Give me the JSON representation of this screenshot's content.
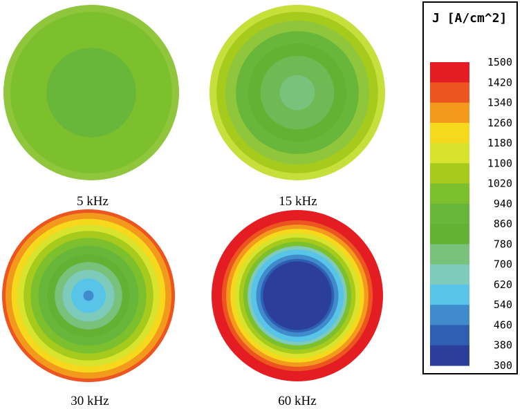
{
  "chart_data": {
    "type": "heatmap",
    "title": "",
    "colorbar": {
      "label": "J [A/cm^2]",
      "ticks": [
        1500,
        1420,
        1340,
        1260,
        1180,
        1100,
        1020,
        940,
        860,
        780,
        700,
        620,
        540,
        460,
        380,
        300
      ],
      "band_colors": [
        "#e41d23",
        "#ec5420",
        "#f39a1d",
        "#f6d81d",
        "#d7e32c",
        "#a6cb1d",
        "#7cc02e",
        "#69b73a",
        "#63b233",
        "#78c27b",
        "#7ecbbb",
        "#57c4e8",
        "#3f8bcc",
        "#2e5fb2",
        "#2b3e99"
      ]
    },
    "plots": [
      {
        "label": "5 kHz",
        "frequency_khz": 5,
        "rings_outer_to_inner": [
          {
            "r": 1.0,
            "color": "#8fc63c"
          },
          {
            "r": 0.92,
            "color": "#7cc02e"
          },
          {
            "r": 0.51,
            "color": "#69b73a"
          }
        ]
      },
      {
        "label": "15 kHz",
        "frequency_khz": 15,
        "rings_outer_to_inner": [
          {
            "r": 1.0,
            "color": "#c7df3a"
          },
          {
            "r": 0.92,
            "color": "#a6cb1d"
          },
          {
            "r": 0.82,
            "color": "#8fc63c"
          },
          {
            "r": 0.7,
            "color": "#69b73a"
          },
          {
            "r": 0.56,
            "color": "#63b233"
          },
          {
            "r": 0.42,
            "color": "#6fba55"
          },
          {
            "r": 0.2,
            "color": "#78c27b"
          }
        ]
      },
      {
        "label": "30 kHz",
        "frequency_khz": 30,
        "rings_outer_to_inner": [
          {
            "r": 1.0,
            "color": "#ec5420"
          },
          {
            "r": 0.96,
            "color": "#f39a1d"
          },
          {
            "r": 0.89,
            "color": "#f6d81d"
          },
          {
            "r": 0.82,
            "color": "#d7e32c"
          },
          {
            "r": 0.75,
            "color": "#a6cb1d"
          },
          {
            "r": 0.67,
            "color": "#7cc02e"
          },
          {
            "r": 0.58,
            "color": "#69b73a"
          },
          {
            "r": 0.48,
            "color": "#63b233"
          },
          {
            "r": 0.39,
            "color": "#78c27b"
          },
          {
            "r": 0.3,
            "color": "#7ecbbb"
          },
          {
            "r": 0.2,
            "color": "#57c4e8"
          },
          {
            "r": 0.06,
            "color": "#3f8bcc"
          }
        ]
      },
      {
        "label": "60 kHz",
        "frequency_khz": 60,
        "rings_outer_to_inner": [
          {
            "r": 1.0,
            "color": "#e41d23"
          },
          {
            "r": 0.88,
            "color": "#ec5420"
          },
          {
            "r": 0.83,
            "color": "#f39a1d"
          },
          {
            "r": 0.78,
            "color": "#f6d81d"
          },
          {
            "r": 0.73,
            "color": "#d7e32c"
          },
          {
            "r": 0.68,
            "color": "#a6cb1d"
          },
          {
            "r": 0.63,
            "color": "#7cc02e"
          },
          {
            "r": 0.58,
            "color": "#7ecbbb"
          },
          {
            "r": 0.54,
            "color": "#57c4e8"
          },
          {
            "r": 0.48,
            "color": "#3f8bcc"
          },
          {
            "r": 0.43,
            "color": "#2e5fb2"
          },
          {
            "r": 0.4,
            "color": "#2b3e99"
          }
        ]
      }
    ]
  }
}
